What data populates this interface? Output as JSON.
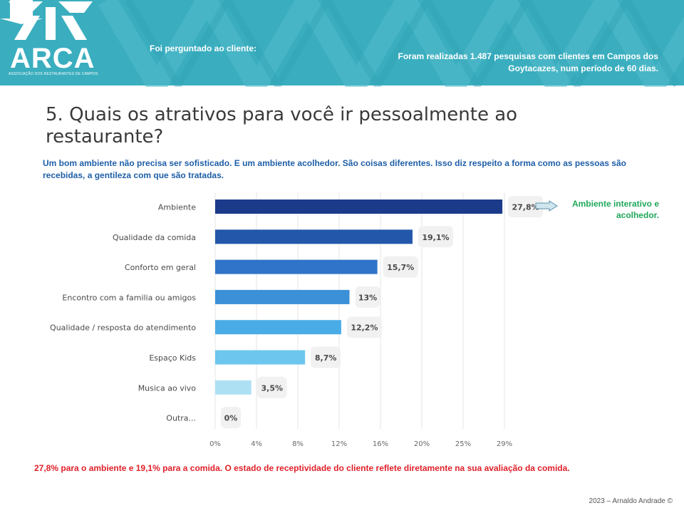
{
  "header": {
    "logo_text": "ARCA",
    "logo_subtitle": "ASSOCIAÇÃO DOS RESTAURANTES DE CAMPOS",
    "asked_label": "Foi perguntado ao cliente:",
    "survey_info": "Foram realizadas 1.487 pesquisas com clientes em Campos dos Goytacazes, num período de 60 dias.",
    "banner_color": "#3aaebf"
  },
  "question_title": "5. Quais os atrativos para você ir pessoalmente ao restaurante?",
  "intro_text": "Um bom ambiente não precisa ser sofisticado.  E um ambiente acolhedor. São coisas diferentes. Isso diz respeito a forma como as pessoas  são recebidas, a gentileza com que são tratadas.",
  "annotation": "Ambiente interativo e acolhedor.",
  "conclusion": "27,8%  para o ambiente e 19,1% para a comida. O estado de receptividade do cliente reflete diretamente na sua avaliação da comida.",
  "copyright": "2023 – Arnaldo Andrade ©",
  "chart_data": {
    "type": "bar",
    "orientation": "horizontal",
    "title": "",
    "categories": [
      "Ambiente",
      "Qualidade da comida",
      "Conforto em geral",
      "Encontro com a familia ou amigos",
      "Qualidade / resposta do atendimento",
      "Espaço Kids",
      "Musica ao vivo",
      "Outra..."
    ],
    "values": [
      27.8,
      19.1,
      15.7,
      13,
      12.2,
      8.7,
      3.5,
      0
    ],
    "value_labels": [
      "27,8%",
      "19,1%",
      "15,7%",
      "13%",
      "12,2%",
      "8,7%",
      "3,5%",
      "0%"
    ],
    "colors": [
      "#1b3a8a",
      "#2357aa",
      "#2f74c8",
      "#3b90d8",
      "#4aace6",
      "#6cc6ee",
      "#aee0f4",
      "#d0ecf8"
    ],
    "x_ticks": [
      "0%",
      "4%",
      "8%",
      "12%",
      "16%",
      "20%",
      "25%",
      "29%"
    ],
    "xlim": [
      0,
      28
    ],
    "grid": true
  }
}
